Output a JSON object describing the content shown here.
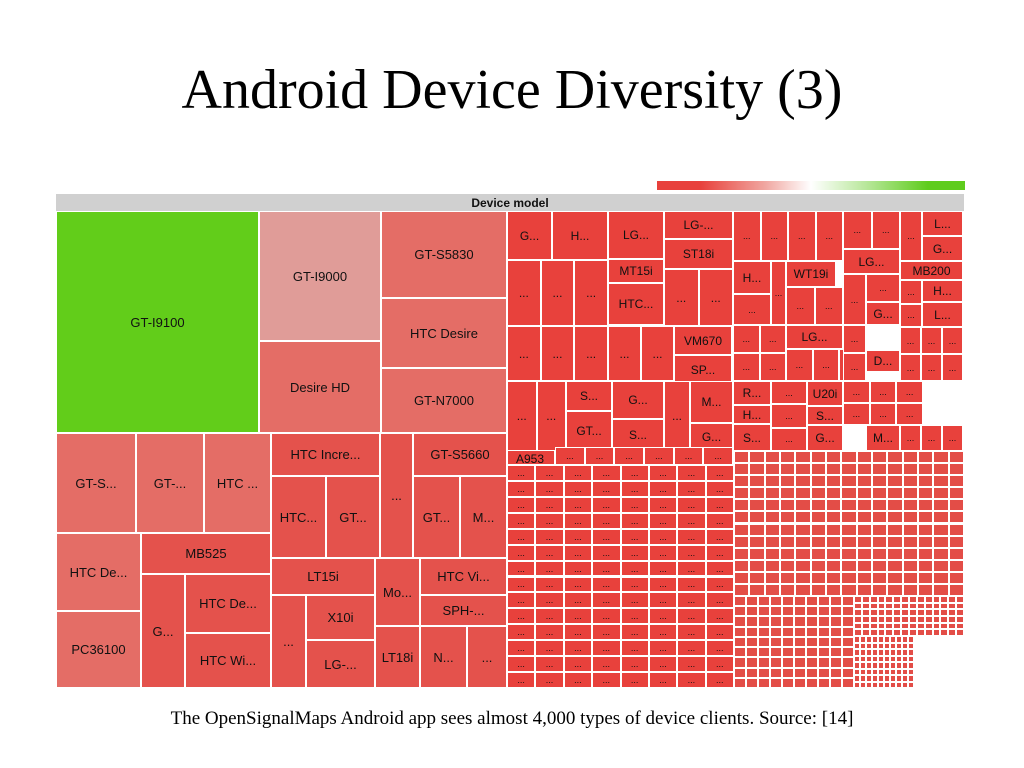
{
  "slide": {
    "title": "Android Device Diversity (3)",
    "caption": "The OpenSignalMaps Android app sees almost 4,000 types of device clients. Source: [14]"
  },
  "colors": {
    "top_device": "#62cd1a",
    "mid_red": "#e46d66",
    "pale_red": "#e09c98",
    "red": "#e8413c",
    "border": "#ffffff",
    "header": "#d0d0d0"
  },
  "chart_data": {
    "type": "heatmap",
    "subtype": "treemap",
    "header": "Device model",
    "color_scale": [
      "#e8413c",
      "#ffffff",
      "#5fcc1d"
    ],
    "total_device_types_approx": 4000,
    "cells": [
      {
        "label": "GT-I9100",
        "color": "#62cd1a"
      },
      {
        "label": "GT-I9000",
        "color": "#e09c98"
      },
      {
        "label": "Desire HD",
        "color": "#e46d66"
      },
      {
        "label": "GT-S5830",
        "color": "#e46d66"
      },
      {
        "label": "HTC Desire",
        "color": "#e46d66"
      },
      {
        "label": "GT-N7000",
        "color": "#e46d66"
      },
      {
        "label": "GT-S...",
        "color": "#e46d66"
      },
      {
        "label": "GT-...",
        "color": "#e46d66"
      },
      {
        "label": "HTC ...",
        "color": "#e46d66"
      },
      {
        "label": "HTC De...",
        "color": "#e46d66"
      },
      {
        "label": "MB525",
        "color": "#e4524c"
      },
      {
        "label": "PC36100",
        "color": "#e46d66"
      },
      {
        "label": "G...",
        "color": "#e4524c"
      },
      {
        "label": "HTC De...",
        "color": "#e4524c"
      },
      {
        "label": "HTC Wi...",
        "color": "#e4524c"
      },
      {
        "label": "HTC Incre...",
        "color": "#e4524c"
      },
      {
        "label": "HTC...",
        "color": "#e4524c"
      },
      {
        "label": "GT...",
        "color": "#e4524c"
      },
      {
        "label": "...",
        "color": "#e4524c"
      },
      {
        "label": "GT-S5660",
        "color": "#e4524c"
      },
      {
        "label": "GT...",
        "color": "#e4524c"
      },
      {
        "label": "M...",
        "color": "#e4524c"
      },
      {
        "label": "LT15i",
        "color": "#e4524c"
      },
      {
        "label": "Mo...",
        "color": "#e4524c"
      },
      {
        "label": "HTC Vi...",
        "color": "#e4524c"
      },
      {
        "label": "X10i",
        "color": "#e4524c"
      },
      {
        "label": "SPH-...",
        "color": "#e4524c"
      },
      {
        "label": "...",
        "color": "#e4524c"
      },
      {
        "label": "LG-...",
        "color": "#e4524c"
      },
      {
        "label": "LT18i",
        "color": "#e4524c"
      },
      {
        "label": "N...",
        "color": "#e4524c"
      },
      {
        "label": "...",
        "color": "#e4524c"
      },
      {
        "label": "G...",
        "color": "#e8413c"
      },
      {
        "label": "H...",
        "color": "#e8413c"
      },
      {
        "label": "LG...",
        "color": "#e8413c"
      },
      {
        "label": "LG-...",
        "color": "#e8413c"
      },
      {
        "label": "ST18i",
        "color": "#e8413c"
      },
      {
        "label": "MT15i",
        "color": "#e8413c"
      },
      {
        "label": "HTC...",
        "color": "#e8413c"
      },
      {
        "label": "VM670",
        "color": "#e8413c"
      },
      {
        "label": "SP...",
        "color": "#e8413c"
      },
      {
        "label": "S...",
        "color": "#e8413c"
      },
      {
        "label": "G...",
        "color": "#e8413c"
      },
      {
        "label": "M...",
        "color": "#e8413c"
      },
      {
        "label": "GT...",
        "color": "#e8413c"
      },
      {
        "label": "S...",
        "color": "#e8413c"
      },
      {
        "label": "G...",
        "color": "#e8413c"
      },
      {
        "label": "H...",
        "color": "#e8413c"
      },
      {
        "label": "WT19i",
        "color": "#e8413c"
      },
      {
        "label": "LG...",
        "color": "#e8413c"
      },
      {
        "label": "MB200",
        "color": "#e8413c"
      },
      {
        "label": "L...",
        "color": "#e8413c"
      },
      {
        "label": "G...",
        "color": "#e8413c"
      },
      {
        "label": "H...",
        "color": "#e8413c"
      },
      {
        "label": "G...",
        "color": "#e8413c"
      },
      {
        "label": "L...",
        "color": "#e8413c"
      },
      {
        "label": "G...",
        "color": "#e8413c"
      },
      {
        "label": "LG...",
        "color": "#e8413c"
      },
      {
        "label": "D...",
        "color": "#e8413c"
      },
      {
        "label": "R...",
        "color": "#e8413c"
      },
      {
        "label": "U20i",
        "color": "#e8413c"
      },
      {
        "label": "H...",
        "color": "#e8413c"
      },
      {
        "label": "S...",
        "color": "#e8413c"
      },
      {
        "label": "S...",
        "color": "#e8413c"
      },
      {
        "label": "G...",
        "color": "#e8413c"
      },
      {
        "label": "M...",
        "color": "#e8413c"
      },
      {
        "label": "A953",
        "color": "#e8413c"
      }
    ]
  }
}
